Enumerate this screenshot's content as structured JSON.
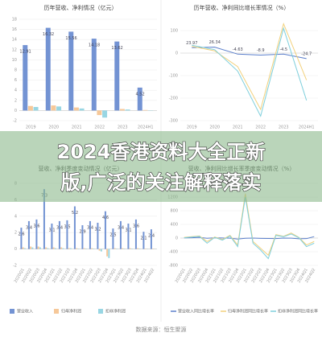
{
  "chart_data": [
    {
      "type": "bar",
      "title": "历年营收、净利情况（亿元）",
      "data_labels": true,
      "legend": false,
      "categories": [
        "2019",
        "2020",
        "2021",
        "2022",
        "2023",
        "2024H1"
      ],
      "series": [
        {
          "name": "营业收入",
          "color": "#7393d3",
          "values": [
            12.91,
            16.32,
            15.56,
            14.18,
            13.62,
            4.52
          ]
        },
        {
          "name": "归母净利润",
          "color": "#f6c899",
          "values": [
            0.9,
            1.0,
            0.6,
            -0.9,
            0.3,
            0.1
          ]
        },
        {
          "name": "扣非净利润",
          "color": "#98d6e3",
          "values": [
            0.7,
            0.8,
            0.4,
            -1.4,
            0.2,
            0.05
          ]
        }
      ],
      "ylim": [
        -2,
        18
      ],
      "yticks": [
        -2,
        0,
        2,
        4,
        6,
        8,
        10,
        12,
        14,
        16,
        18
      ],
      "grid": true
    },
    {
      "type": "line",
      "title": "历年营收、净利同比增长率情况（%）",
      "data_labels": true,
      "legend": false,
      "categories": [
        "2019",
        "2020",
        "2021",
        "2022",
        "2023",
        "2024H1"
      ],
      "series": [
        {
          "name": "营业收入同比增长率",
          "color": "#5b7fcb",
          "values": [
            23.97,
            26.34,
            -4.63,
            -8.9,
            -4.5,
            -24.7
          ]
        },
        {
          "name": "归母净利润同比增长率",
          "color": "#f2d17c",
          "values": [
            30,
            10,
            -60,
            -250,
            130,
            -120
          ]
        },
        {
          "name": "扣非净利润同比增长率",
          "color": "#7fcfdc",
          "values": [
            35,
            15,
            -80,
            -280,
            110,
            -210
          ]
        }
      ],
      "ylim": [
        -300,
        150
      ],
      "yticks": [
        -300,
        -200,
        -100,
        0,
        100
      ],
      "grid": true
    },
    {
      "type": "bar",
      "title": "营收、净利季度变动情况（亿元）",
      "data_labels": true,
      "legend": true,
      "categories": [
        "2020Q1",
        "2020Q2",
        "2020Q3",
        "2020Q4",
        "2021Q1",
        "2021Q2",
        "2021Q3",
        "2021Q4",
        "2022Q1",
        "2022Q2",
        "2022Q3",
        "2022Q4",
        "2023Q1",
        "2023Q2",
        "2023Q3",
        "2023Q4",
        "2024Q1",
        "2024Q2"
      ],
      "series": [
        {
          "name": "营业收入",
          "color": "#7393d3",
          "values": [
            2.6,
            3.4,
            3.6,
            7.3,
            3.1,
            3.4,
            3.5,
            5.2,
            2.9,
            3.4,
            3.2,
            4.6,
            2.5,
            3.4,
            3.1,
            3.6,
            2.1,
            2.4
          ]
        },
        {
          "name": "归母净利润",
          "color": "#f6c899",
          "values": [
            0.2,
            0.3,
            0.3,
            0.2,
            0.2,
            0.2,
            0.1,
            0.1,
            0.1,
            0.1,
            -0.2,
            -0.9,
            0.1,
            0.1,
            0.1,
            0.1,
            0.05,
            0.05
          ]
        },
        {
          "name": "扣非净利润",
          "color": "#98d6e3",
          "values": [
            0.1,
            0.2,
            0.2,
            0.1,
            0.1,
            0.1,
            0.1,
            0.05,
            0.05,
            0.05,
            -0.3,
            -1.1,
            0.05,
            0.05,
            0.05,
            0.05,
            0.03,
            0.02
          ]
        }
      ],
      "ylim": [
        -2,
        8
      ],
      "yticks": [
        -2,
        0,
        2,
        4,
        6,
        8
      ],
      "grid": true
    },
    {
      "type": "line",
      "title": "营收、净利同比增长率季度变动情况（%）",
      "data_labels": false,
      "legend": true,
      "categories": [
        "2020Q1",
        "2020Q2",
        "2020Q3",
        "2020Q4",
        "2021Q1",
        "2021Q2",
        "2021Q3",
        "2021Q4",
        "2022Q1",
        "2022Q2",
        "2022Q3",
        "2022Q4",
        "2023Q1",
        "2023Q2",
        "2023Q3",
        "2023Q4",
        "2024Q1",
        "2024Q2"
      ],
      "series": [
        {
          "name": "营业收入同比增长率",
          "color": "#5b7fcb",
          "values": [
            5.34,
            10,
            20,
            -5,
            8,
            2,
            -3,
            -30,
            -5,
            0,
            -8,
            -12,
            -15,
            0,
            -3,
            -20,
            -16,
            42.28
          ]
        },
        {
          "name": "归母净利润同比增长率",
          "color": "#f2d17c",
          "values": [
            20,
            40,
            60,
            -100,
            30,
            -40,
            80,
            -200,
            1300,
            -100,
            -300,
            -500,
            100,
            50,
            150,
            20,
            -200,
            -100
          ]
        },
        {
          "name": "扣非净利润同比增长率",
          "color": "#7fcfdc",
          "values": [
            10,
            30,
            50,
            -150,
            20,
            -60,
            60,
            -250,
            1200,
            -150,
            -350,
            -600,
            80,
            40,
            120,
            10,
            -250,
            -150
          ]
        }
      ],
      "ylim": [
        -800,
        1600
      ],
      "yticks": [
        -800,
        -400,
        0,
        400,
        800,
        1200,
        1600
      ],
      "grid": true
    }
  ],
  "banner": {
    "lines": [
      "2024香港资料大全正新",
      "版,广泛的关注解释落实"
    ]
  },
  "source": "数据来源：恒生聚源"
}
